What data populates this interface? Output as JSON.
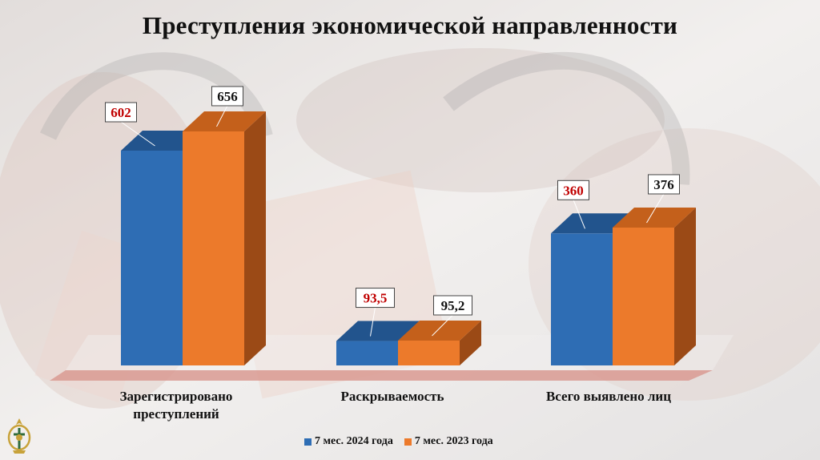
{
  "title": "Преступления экономической направленности",
  "legend": [
    {
      "label": "7 мес. 2024 года",
      "color": "#2e6db4"
    },
    {
      "label": "7 мес. 2023 года",
      "color": "#ec7a2b"
    }
  ],
  "colors": {
    "series_2024_front": "#2e6db4",
    "series_2024_top": "#22548d",
    "series_2023_front": "#ec7a2b",
    "series_2023_top": "#c4601b",
    "series_2023_side": "#9b4a16",
    "label_2024_text": "#c00000",
    "label_2023_text": "#111111"
  },
  "chart_data": {
    "type": "bar",
    "categories": [
      "Зарегистрировано преступлений",
      "Раскрываемость",
      "Всего выявлено лиц"
    ],
    "category_labels": [
      [
        "Зарегистрировано",
        "преступлений"
      ],
      [
        "Раскрываемость"
      ],
      [
        "Всего выявлено лиц"
      ]
    ],
    "series": [
      {
        "name": "7 мес. 2024 года",
        "values": [
          602,
          93.5,
          360
        ],
        "labels": [
          "602",
          "93,5",
          "360"
        ]
      },
      {
        "name": "7 мес. 2023 года",
        "values": [
          656,
          95.2,
          376
        ],
        "labels": [
          "656",
          "95,2",
          "376"
        ]
      }
    ]
  }
}
